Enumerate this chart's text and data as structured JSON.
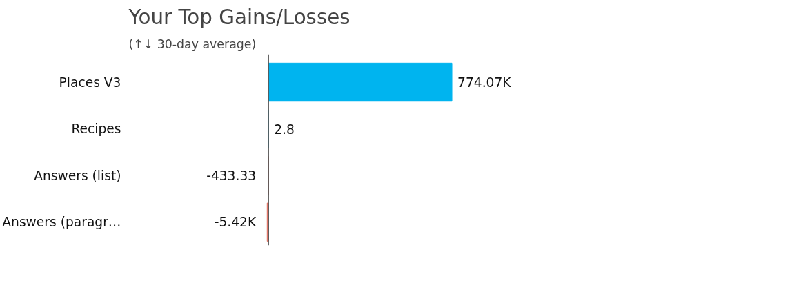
{
  "chart_data": {
    "type": "bar",
    "orientation": "horizontal",
    "title": "Your Top Gains/Losses",
    "subtitle": "(↑↓ 30-day average)",
    "categories": [
      "Places V3",
      "Recipes",
      "Answers (list)",
      "Answers (paragr…"
    ],
    "values": [
      774070,
      2.8,
      -433.33,
      -5420
    ],
    "colors": [
      "#00b4ef",
      "#00b4ef",
      "#e07060",
      "#e07060"
    ],
    "value_labels": [
      "774.07K",
      "2.8",
      "-433.33",
      "-5.42K"
    ],
    "tick_labels": "y",
    "grid": false
  }
}
